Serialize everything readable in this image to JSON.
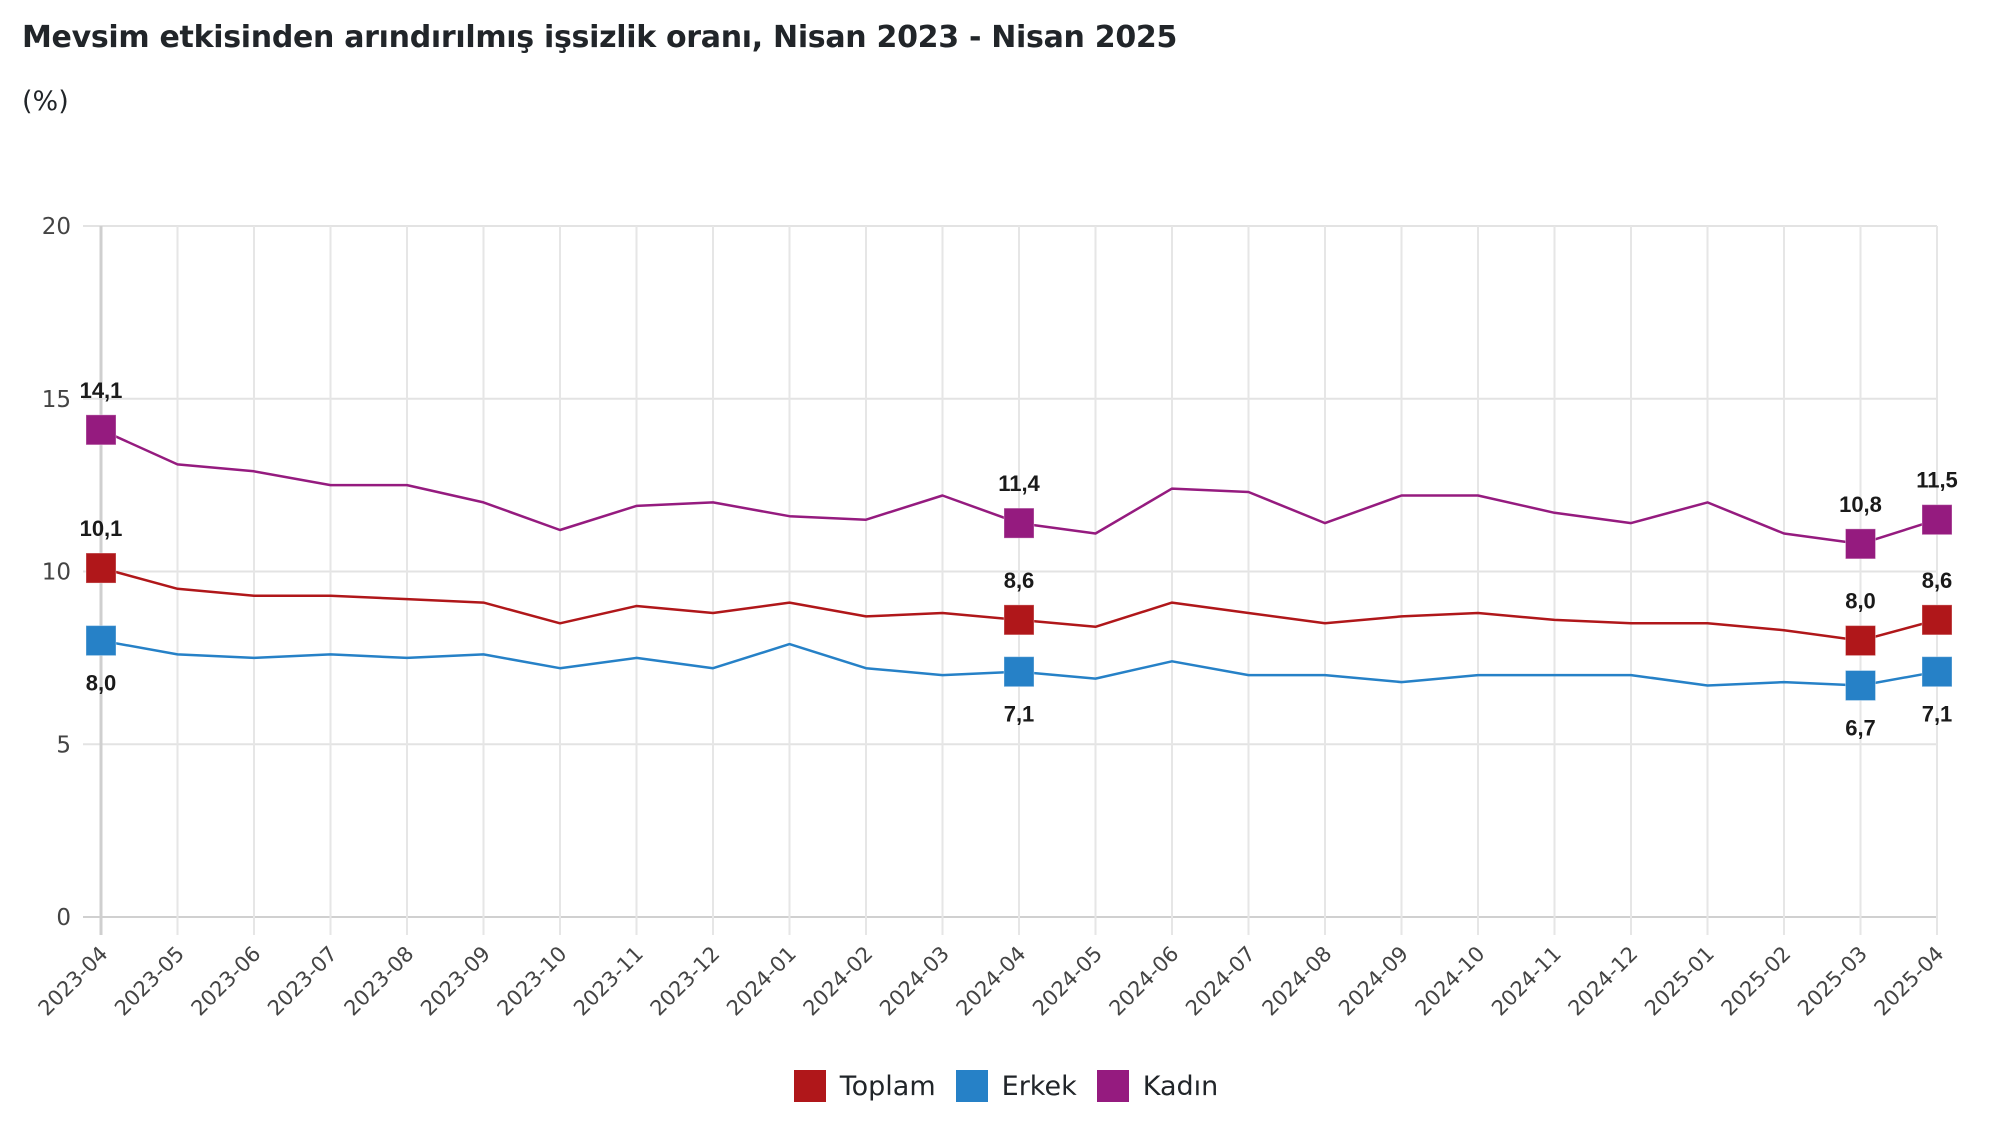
{
  "header": {
    "title": "Mevsim etkisinden arındırılmış işsizlik oranı, Nisan 2023 - Nisan 2025",
    "subtitle": "(%)"
  },
  "chart_data": {
    "type": "line",
    "title": "Mevsim etkisinden arındırılmış işsizlik oranı, Nisan 2023 - Nisan 2025",
    "subtitle": "(%)",
    "xlabel": "",
    "ylabel": "",
    "ylim": [
      0,
      20
    ],
    "yticks": [
      0,
      5,
      10,
      15,
      20
    ],
    "ytick_labels": [
      "0",
      "5",
      "10",
      "15",
      "20"
    ],
    "grid": true,
    "legend_position": "bottom-center",
    "categories": [
      "2023-04",
      "2023-05",
      "2023-06",
      "2023-07",
      "2023-08",
      "2023-09",
      "2023-10",
      "2023-11",
      "2023-12",
      "2024-01",
      "2024-02",
      "2024-03",
      "2024-04",
      "2024-05",
      "2024-06",
      "2024-07",
      "2024-08",
      "2024-09",
      "2024-10",
      "2024-11",
      "2024-12",
      "2025-01",
      "2025-02",
      "2025-03",
      "2025-04"
    ],
    "series": [
      {
        "name": "Toplam",
        "color": "#B0171A",
        "label_position": "above",
        "values": [
          10.1,
          9.5,
          9.3,
          9.3,
          9.2,
          9.1,
          8.5,
          9.0,
          8.8,
          9.1,
          8.7,
          8.8,
          8.6,
          8.4,
          9.1,
          8.8,
          8.5,
          8.7,
          8.8,
          8.6,
          8.5,
          8.5,
          8.3,
          8.0,
          8.6
        ],
        "marked_points": [
          {
            "index": 0,
            "label": "10,1"
          },
          {
            "index": 12,
            "label": "8,6"
          },
          {
            "index": 23,
            "label": "8,0"
          },
          {
            "index": 24,
            "label": "8,6"
          }
        ]
      },
      {
        "name": "Erkek",
        "color": "#2681C7",
        "label_position": "below",
        "values": [
          8.0,
          7.6,
          7.5,
          7.6,
          7.5,
          7.6,
          7.2,
          7.5,
          7.2,
          7.9,
          7.2,
          7.0,
          7.1,
          6.9,
          7.4,
          7.0,
          7.0,
          6.8,
          7.0,
          7.0,
          7.0,
          6.7,
          6.8,
          6.7,
          7.1
        ],
        "marked_points": [
          {
            "index": 0,
            "label": "8,0"
          },
          {
            "index": 12,
            "label": "7,1"
          },
          {
            "index": 23,
            "label": "6,7"
          },
          {
            "index": 24,
            "label": "7,1"
          }
        ]
      },
      {
        "name": "Kadın",
        "color": "#951B7F",
        "label_position": "above",
        "values": [
          14.1,
          13.1,
          12.9,
          12.5,
          12.5,
          12.0,
          11.2,
          11.9,
          12.0,
          11.6,
          11.5,
          12.2,
          11.4,
          11.1,
          12.4,
          12.3,
          11.4,
          12.2,
          12.2,
          11.7,
          11.4,
          12.0,
          11.1,
          10.8,
          11.5
        ],
        "marked_points": [
          {
            "index": 0,
            "label": "14,1"
          },
          {
            "index": 12,
            "label": "11,4"
          },
          {
            "index": 23,
            "label": "10,8"
          },
          {
            "index": 24,
            "label": "11,5"
          }
        ]
      }
    ]
  }
}
